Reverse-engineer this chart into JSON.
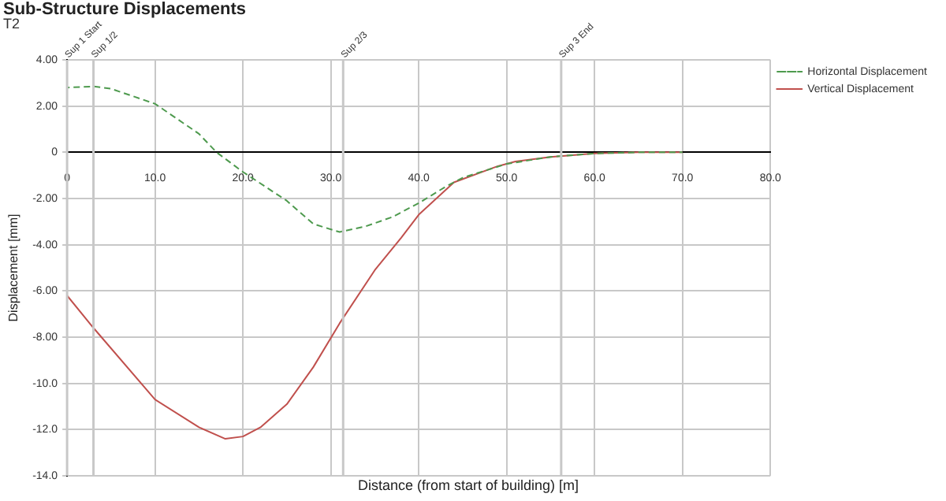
{
  "chart_data": {
    "type": "line",
    "title": "Sub-Structure Displacements",
    "subtitle": "T2",
    "xlabel": "Distance (from start of building) [m]",
    "ylabel": "Displacement [mm]",
    "xlim": [
      0,
      80
    ],
    "xticks": [
      {
        "value": 0,
        "label": "0"
      },
      {
        "value": 10,
        "label": "10.0"
      },
      {
        "value": 20,
        "label": "20.0"
      },
      {
        "value": 30,
        "label": "30.0"
      },
      {
        "value": 40,
        "label": "40.0"
      },
      {
        "value": 50,
        "label": "50.0"
      },
      {
        "value": 60,
        "label": "60.0"
      },
      {
        "value": 70,
        "label": "70.0"
      },
      {
        "value": 80,
        "label": "80.0"
      }
    ],
    "ylim": [
      -14,
      4
    ],
    "yticks": [
      {
        "value": 4,
        "label": "4.00"
      },
      {
        "value": 2,
        "label": "2.00"
      },
      {
        "value": 0,
        "label": "0"
      },
      {
        "value": -2,
        "label": "-2.00"
      },
      {
        "value": -4,
        "label": "-4.00"
      },
      {
        "value": -6,
        "label": "-6.00"
      },
      {
        "value": -8,
        "label": "-8.00"
      },
      {
        "value": -10,
        "label": "-10.0"
      },
      {
        "value": -12,
        "label": "-12.0"
      },
      {
        "value": -14,
        "label": "-14.0"
      }
    ],
    "series": [
      {
        "name": "Vertical Displacement",
        "color": "#c0504d",
        "line_style": "solid",
        "x": [
          0,
          3,
          10,
          15,
          18,
          20,
          22,
          25,
          28,
          31,
          35,
          38,
          40,
          44,
          49,
          51,
          55,
          60,
          65,
          70
        ],
        "values": [
          -6.2,
          -7.6,
          -10.7,
          -11.9,
          -12.4,
          -12.3,
          -11.9,
          -10.9,
          -9.3,
          -7.4,
          -5.1,
          -3.7,
          -2.7,
          -1.3,
          -0.6,
          -0.4,
          -0.2,
          -0.05,
          0,
          0
        ]
      },
      {
        "name": "Horizontal Displacement",
        "color": "#4e9a4e",
        "line_style": "dashed",
        "x": [
          0,
          3,
          5,
          10,
          15,
          17,
          20,
          25,
          28,
          31,
          34,
          37,
          40,
          43,
          45,
          50,
          55,
          60,
          65,
          70
        ],
        "values": [
          2.8,
          2.85,
          2.75,
          2.1,
          0.8,
          0,
          -0.85,
          -2.1,
          -3.1,
          -3.45,
          -3.2,
          -2.8,
          -2.2,
          -1.5,
          -1.1,
          -0.5,
          -0.2,
          -0.05,
          0,
          0
        ]
      }
    ],
    "ref_lines": [
      {
        "axis": "x",
        "value": 0,
        "label": "Sup 1 Start",
        "color": "#c8c8c8"
      },
      {
        "axis": "x",
        "value": 3,
        "label": "Sup 1/2",
        "color": "#c8c8c8"
      },
      {
        "axis": "x",
        "value": 31.4,
        "label": "Sup 2/3",
        "color": "#c8c8c8"
      },
      {
        "axis": "x",
        "value": 56.2,
        "label": "Sup 3 End",
        "color": "#c8c8c8"
      }
    ],
    "grid": true,
    "legend": "top right",
    "marker": "none"
  }
}
